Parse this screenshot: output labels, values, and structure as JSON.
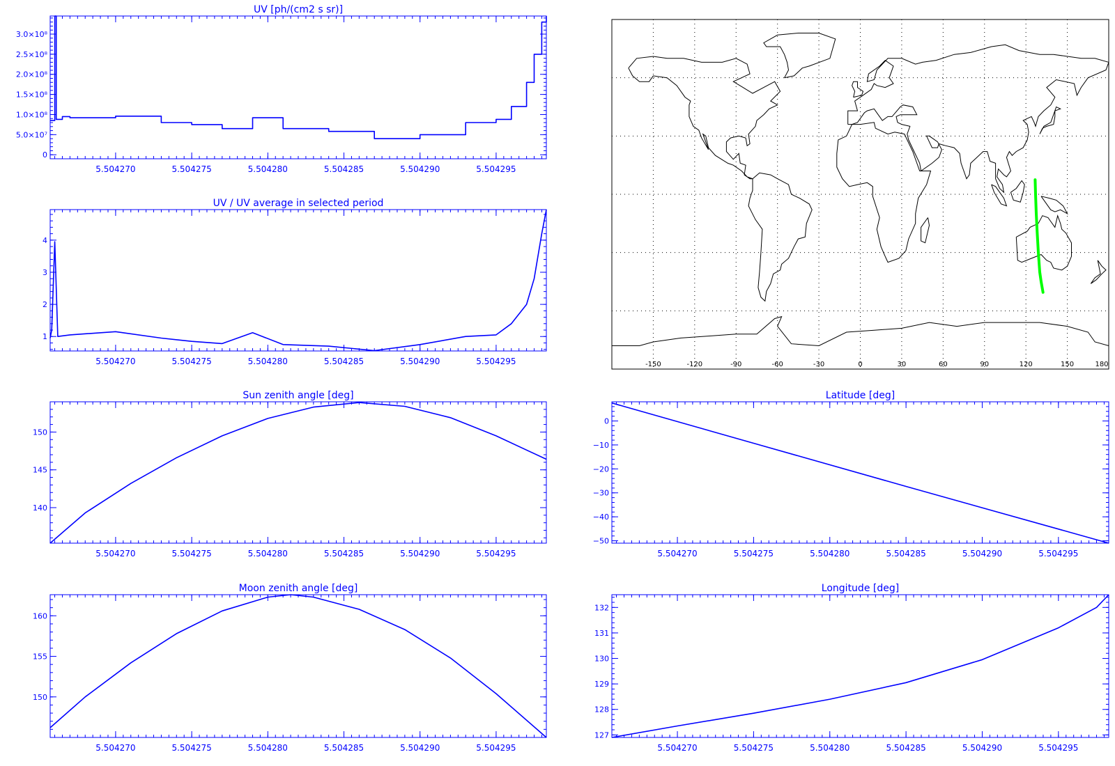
{
  "colors": {
    "plot": "#0000ff",
    "map_coast": "#000000",
    "map_grid": "#000000",
    "map_track": "#00ff00"
  },
  "map": {
    "lon_ticks": [
      "-150",
      "-120",
      "-90",
      "-60",
      "-30",
      "0",
      "30",
      "60",
      "90",
      "120",
      "150",
      "180"
    ],
    "projection": "cylindrical",
    "grid_step_deg": 30,
    "track": {
      "lon": [
        126.7,
        127.0,
        127.5,
        128.2,
        129.0,
        130.0,
        131.0,
        132.4
      ],
      "lat": [
        7.5,
        0,
        -10,
        -20,
        -30,
        -40,
        -45,
        -50.5
      ]
    }
  },
  "chart_data": [
    {
      "id": "uv",
      "type": "line",
      "title": "UV [ph/(cm2 s sr)]",
      "xlabel": "",
      "ylabel": "",
      "xlim": [
        5.5042657,
        5.5042983
      ],
      "ylim": [
        -10000000.0,
        345000000.0
      ],
      "xtick_values": [
        5.50427,
        5.504275,
        5.50428,
        5.504285,
        5.50429,
        5.504295
      ],
      "xtick_labels": [
        "5.504270",
        "5.504275",
        "5.504280",
        "5.504285",
        "5.504290",
        "5.504295"
      ],
      "ytick_values": [
        0,
        50000000.0,
        100000000.0,
        150000000.0,
        200000000.0,
        250000000.0,
        300000000.0
      ],
      "ytick_labels": [
        "0",
        "5.0×10⁷",
        "1.0×10⁸",
        "1.5×10⁸",
        "2.0×10⁸",
        "2.5×10⁸",
        "3.0×10⁸"
      ],
      "grid": false,
      "step": true,
      "x": [
        5.5042657,
        5.504266,
        5.5042661,
        5.5042665,
        5.504267,
        5.50427,
        5.504273,
        5.504275,
        5.504277,
        5.504279,
        5.504281,
        5.504284,
        5.504287,
        5.50429,
        5.504293,
        5.504295,
        5.504296,
        5.504297,
        5.5042975,
        5.504298,
        5.5042983
      ],
      "y": [
        85000000.0,
        345000000.0,
        88000000.0,
        95000000.0,
        92000000.0,
        96000000.0,
        80000000.0,
        75000000.0,
        65000000.0,
        92000000.0,
        65000000.0,
        58000000.0,
        40000000.0,
        50000000.0,
        80000000.0,
        88000000.0,
        120000000.0,
        180000000.0,
        250000000.0,
        330000000.0,
        345000000.0
      ]
    },
    {
      "id": "uv-ratio",
      "type": "line",
      "title": "UV / UV average in selected period",
      "xlabel": "",
      "ylabel": "",
      "xlim": [
        5.5042657,
        5.5042983
      ],
      "ylim": [
        0.55,
        4.95
      ],
      "xtick_values": [
        5.50427,
        5.504275,
        5.50428,
        5.504285,
        5.50429,
        5.504295
      ],
      "xtick_labels": [
        "5.504270",
        "5.504275",
        "5.504280",
        "5.504285",
        "5.504290",
        "5.504295"
      ],
      "ytick_values": [
        1,
        2,
        3,
        4
      ],
      "ytick_labels": [
        "1",
        "2",
        "3",
        "4"
      ],
      "grid": false,
      "x": [
        5.5042657,
        5.5042658,
        5.504266,
        5.5042662,
        5.504267,
        5.50427,
        5.504273,
        5.504275,
        5.504277,
        5.504279,
        5.504281,
        5.504284,
        5.504287,
        5.50429,
        5.504293,
        5.504295,
        5.504296,
        5.504297,
        5.5042975,
        5.504298,
        5.5042983
      ],
      "y": [
        0.95,
        1.2,
        3.95,
        1.0,
        1.05,
        1.15,
        0.95,
        0.85,
        0.78,
        1.12,
        0.75,
        0.7,
        0.56,
        0.75,
        1.0,
        1.05,
        1.4,
        2.0,
        2.8,
        4.2,
        4.95
      ]
    },
    {
      "id": "sun-zenith",
      "type": "line",
      "title": "Sun zenith angle [deg]",
      "xlabel": "",
      "ylabel": "",
      "xlim": [
        5.5042657,
        5.5042983
      ],
      "ylim": [
        135.3,
        154.0
      ],
      "xtick_values": [
        5.50427,
        5.504275,
        5.50428,
        5.504285,
        5.50429,
        5.504295
      ],
      "xtick_labels": [
        "5.504270",
        "5.504275",
        "5.504280",
        "5.504285",
        "5.504290",
        "5.504295"
      ],
      "ytick_values": [
        140,
        145,
        150
      ],
      "ytick_labels": [
        "140",
        "145",
        "150"
      ],
      "grid": false,
      "x": [
        5.5042657,
        5.504268,
        5.504271,
        5.504274,
        5.504277,
        5.50428,
        5.504283,
        5.504286,
        5.504289,
        5.504292,
        5.504295,
        5.5042983
      ],
      "y": [
        135.3,
        139.3,
        143.2,
        146.6,
        149.5,
        151.8,
        153.3,
        153.9,
        153.4,
        151.9,
        149.5,
        146.4
      ]
    },
    {
      "id": "latitude",
      "type": "line",
      "title": "Latitude [deg]",
      "xlabel": "",
      "ylabel": "",
      "xlim": [
        5.5042657,
        5.5042983
      ],
      "ylim": [
        -51.0,
        8.0
      ],
      "xtick_values": [
        5.50427,
        5.504275,
        5.50428,
        5.504285,
        5.50429,
        5.504295
      ],
      "xtick_labels": [
        "5.504270",
        "5.504275",
        "5.504280",
        "5.504285",
        "5.504290",
        "5.504295"
      ],
      "ytick_values": [
        0,
        -10,
        -20,
        -30,
        -40,
        -50
      ],
      "ytick_labels": [
        "0",
        "−10",
        "−20",
        "−30",
        "−40",
        "−50"
      ],
      "grid": false,
      "x": [
        5.5042657,
        5.504275,
        5.504285,
        5.5042983
      ],
      "y": [
        7.5,
        -9.3,
        -27.3,
        -51.0
      ]
    },
    {
      "id": "moon-zenith",
      "type": "line",
      "title": "Moon zenith angle [deg]",
      "xlabel": "",
      "ylabel": "",
      "xlim": [
        5.5042657,
        5.5042983
      ],
      "ylim": [
        145.0,
        162.6
      ],
      "xtick_values": [
        5.50427,
        5.504275,
        5.50428,
        5.504285,
        5.50429,
        5.504295
      ],
      "xtick_labels": [
        "5.504270",
        "5.504275",
        "5.504280",
        "5.504285",
        "5.504290",
        "5.504295"
      ],
      "ytick_values": [
        150,
        155,
        160
      ],
      "ytick_labels": [
        "150",
        "155",
        "160"
      ],
      "grid": false,
      "x": [
        5.5042657,
        5.504268,
        5.504271,
        5.504274,
        5.504277,
        5.50428,
        5.5042815,
        5.504283,
        5.504286,
        5.504289,
        5.504292,
        5.504295,
        5.5042983
      ],
      "y": [
        146.2,
        150.0,
        154.2,
        157.8,
        160.6,
        162.3,
        162.6,
        162.3,
        160.8,
        158.3,
        154.8,
        150.4,
        145.0
      ]
    },
    {
      "id": "longitude",
      "type": "line",
      "title": "Longitude [deg]",
      "xlabel": "",
      "ylabel": "",
      "xlim": [
        5.5042657,
        5.5042983
      ],
      "ylim": [
        126.9,
        132.5
      ],
      "xtick_values": [
        5.50427,
        5.504275,
        5.50428,
        5.504285,
        5.50429,
        5.504295
      ],
      "xtick_labels": [
        "5.504270",
        "5.504275",
        "5.504280",
        "5.504285",
        "5.504290",
        "5.504295"
      ],
      "ytick_values": [
        127,
        128,
        129,
        130,
        131,
        132
      ],
      "ytick_labels": [
        "127",
        "128",
        "129",
        "130",
        "131",
        "132"
      ],
      "grid": false,
      "x": [
        5.5042657,
        5.50427,
        5.504275,
        5.50428,
        5.504285,
        5.50429,
        5.504295,
        5.5042975,
        5.5042983
      ],
      "y": [
        126.9,
        127.35,
        127.85,
        128.4,
        129.05,
        129.95,
        131.2,
        132.0,
        132.5
      ]
    }
  ]
}
